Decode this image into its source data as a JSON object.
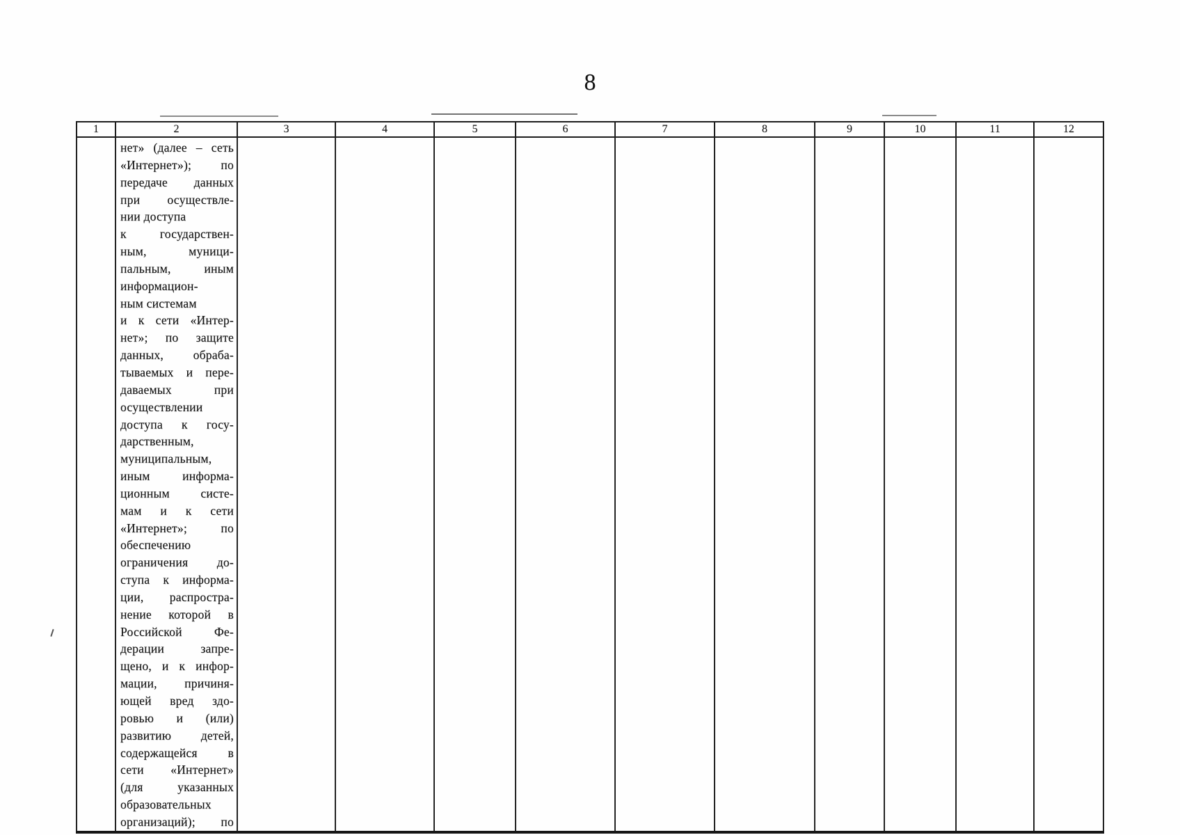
{
  "page": {
    "number": "8"
  },
  "table": {
    "header_columns": [
      "1",
      "2",
      "3",
      "4",
      "5",
      "6",
      "7",
      "8",
      "9",
      "10",
      "11",
      "12"
    ],
    "body": {
      "col2_lines": [
        {
          "text": "нет» (далее – сеть",
          "justify": true
        },
        {
          "text": "«Интернет»); по",
          "justify": true
        },
        {
          "text": "передаче данных",
          "justify": true
        },
        {
          "text": "при осуществле-",
          "justify": true
        },
        {
          "text": "нии доступа",
          "justify": false
        },
        {
          "text": "к государствен-",
          "justify": true
        },
        {
          "text": "ным, муници-",
          "justify": true
        },
        {
          "text": "пальным, иным",
          "justify": true
        },
        {
          "text": "информацион-",
          "justify": false
        },
        {
          "text": "ным системам",
          "justify": false
        },
        {
          "text": "и к сети «Интер-",
          "justify": true
        },
        {
          "text": "нет»; по защите",
          "justify": true
        },
        {
          "text": "данных, обраба-",
          "justify": true
        },
        {
          "text": "тываемых и пере-",
          "justify": true
        },
        {
          "text": "даваемых при",
          "justify": true
        },
        {
          "text": "осуществлении",
          "justify": false
        },
        {
          "text": "доступа к госу-",
          "justify": true
        },
        {
          "text": "дарственным,",
          "justify": false
        },
        {
          "text": "муниципальным,",
          "justify": false
        },
        {
          "text": "иным информа-",
          "justify": true
        },
        {
          "text": "ционным систе-",
          "justify": true
        },
        {
          "text": "мам и к сети",
          "justify": true
        },
        {
          "text": "«Интернет»; по",
          "justify": true
        },
        {
          "text": "обеспечению",
          "justify": false
        },
        {
          "text": "ограничения до-",
          "justify": true
        },
        {
          "text": "ступа к информа-",
          "justify": true
        },
        {
          "text": "ции, распростра-",
          "justify": true
        },
        {
          "text": "нение которой в",
          "justify": true
        },
        {
          "text": "Российской Фе-",
          "justify": true
        },
        {
          "text": "дерации запре-",
          "justify": true
        },
        {
          "text": "щено, и к инфор-",
          "justify": true
        },
        {
          "text": "мации, причиня-",
          "justify": true
        },
        {
          "text": "ющей вред здо-",
          "justify": true
        },
        {
          "text": "ровью и (или)",
          "justify": true
        },
        {
          "text": "развитию детей,",
          "justify": true
        },
        {
          "text": "содержащейся в",
          "justify": true
        },
        {
          "text": "сети «Интернет»",
          "justify": true
        },
        {
          "text": "(для указанных",
          "justify": true
        },
        {
          "text": "образовательных",
          "justify": false
        },
        {
          "text": "организаций); по",
          "justify": true
        }
      ]
    }
  }
}
